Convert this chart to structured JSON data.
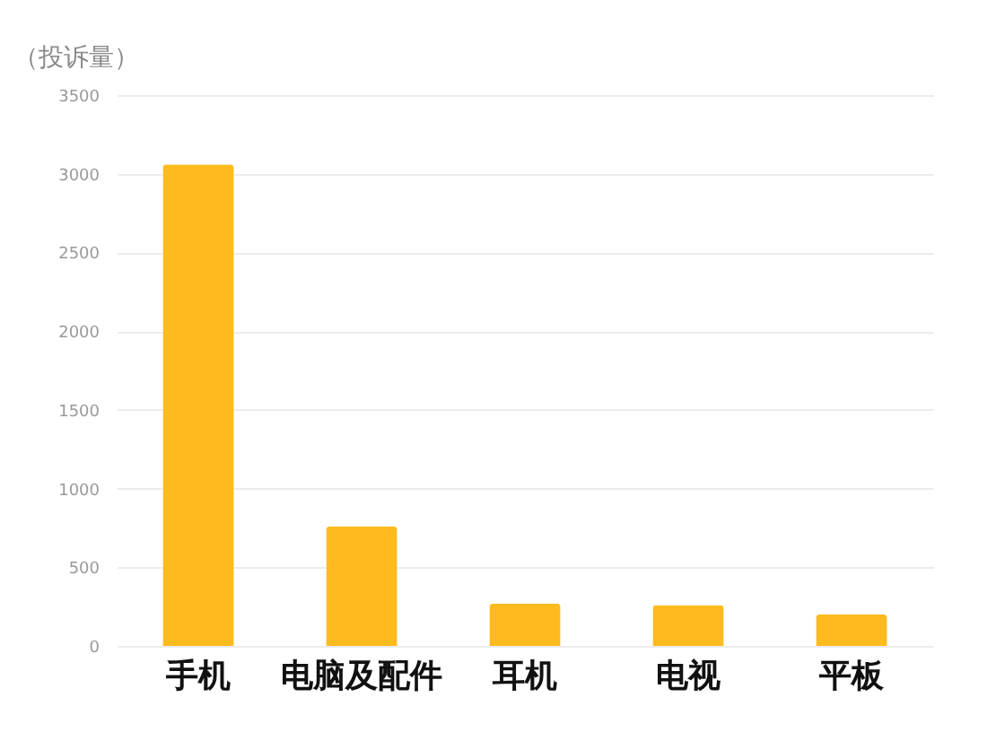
{
  "chart_data": {
    "type": "bar",
    "ylabel": "（投诉量）",
    "categories": [
      "手机",
      "电脑及配件",
      "耳机",
      "电视",
      "平板"
    ],
    "values": [
      3060,
      760,
      270,
      260,
      200
    ],
    "color": "#ffba1e",
    "ylim": [
      0,
      3500
    ],
    "yticks": [
      0,
      500,
      1000,
      1500,
      2000,
      2500,
      3000,
      3500
    ],
    "grid": "y"
  }
}
